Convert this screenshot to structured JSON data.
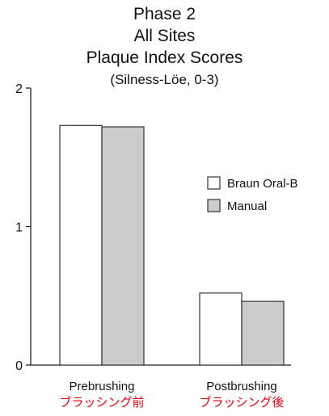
{
  "chart_data": {
    "type": "bar",
    "title": "Phase 2",
    "title_lines": [
      "Phase 2",
      "All Sites",
      "Plaque Index Scores"
    ],
    "subtitle": "(Silness-Löe, 0-3)",
    "categories": [
      "Prebrushing",
      "Postbrushing"
    ],
    "categories_jp": [
      "ブラッシング前",
      "ブラッシング後"
    ],
    "series": [
      {
        "name": "Braun Oral-B",
        "values": [
          1.73,
          0.52
        ],
        "color": "#ffffff"
      },
      {
        "name": "Manual",
        "values": [
          1.72,
          0.46
        ],
        "color": "#cccccc"
      }
    ],
    "ylim": [
      0,
      2
    ],
    "yticks": [
      "0",
      "1",
      "2"
    ],
    "grid": false,
    "legend": "right",
    "jp_label_color": "#e8000d"
  }
}
